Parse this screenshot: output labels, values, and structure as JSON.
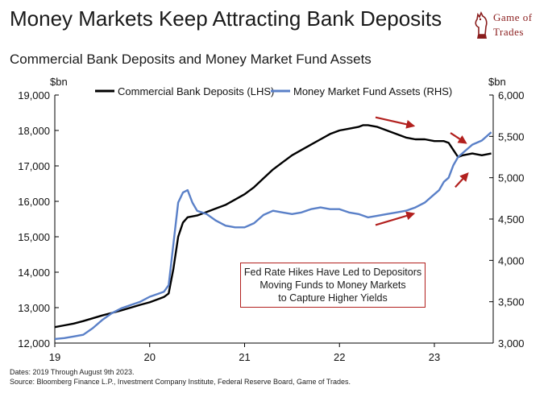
{
  "title": "Money Markets Keep Attracting Bank Deposits",
  "subtitle": "Commercial Bank Deposits and Money Market Fund Assets",
  "logo": {
    "line1": "Game of",
    "line2": "Trades",
    "icon": "chess-knight-icon"
  },
  "footer": {
    "line1": "Dates: 2019 Through August 9th 2023.",
    "line2": "Source: Bloomberg Finance L.P., Investment Company Institute, Federal Reserve Board, Game of Trades."
  },
  "annotation": {
    "lines": [
      "Fed Rate Hikes Have Led to Depositors",
      "Moving Funds to Money Markets",
      "to Capture Higher Yields"
    ],
    "color": "#b2201e"
  },
  "chart_data": {
    "type": "line",
    "left_unit": "$bn",
    "right_unit": "$bn",
    "x_ticks": [
      "19",
      "20",
      "21",
      "22",
      "23"
    ],
    "xlim": [
      2019.0,
      2023.62
    ],
    "left_ticks": [
      "12,000",
      "13,000",
      "14,000",
      "15,000",
      "16,000",
      "17,000",
      "18,000",
      "19,000"
    ],
    "right_ticks": [
      "3,000",
      "3,500",
      "4,000",
      "4,500",
      "5,000",
      "5,500",
      "6,000"
    ],
    "ylim_left": [
      12000,
      19000
    ],
    "ylim_right": [
      3000,
      6000
    ],
    "grid": false,
    "legend_position": "top",
    "series": [
      {
        "name": "Commercial Bank Deposits (LHS)",
        "axis": "left",
        "color": "#000000",
        "x": [
          2019.0,
          2019.1,
          2019.2,
          2019.3,
          2019.4,
          2019.5,
          2019.6,
          2019.7,
          2019.8,
          2019.9,
          2020.0,
          2020.1,
          2020.15,
          2020.2,
          2020.25,
          2020.3,
          2020.35,
          2020.4,
          2020.5,
          2020.6,
          2020.7,
          2020.8,
          2020.9,
          2021.0,
          2021.1,
          2021.2,
          2021.3,
          2021.4,
          2021.5,
          2021.6,
          2021.7,
          2021.8,
          2021.9,
          2022.0,
          2022.1,
          2022.2,
          2022.25,
          2022.3,
          2022.4,
          2022.5,
          2022.6,
          2022.7,
          2022.8,
          2022.9,
          2023.0,
          2023.1,
          2023.15,
          2023.2,
          2023.25,
          2023.3,
          2023.4,
          2023.5,
          2023.6
        ],
        "values": [
          12450,
          12500,
          12550,
          12620,
          12700,
          12780,
          12850,
          12920,
          13000,
          13080,
          13150,
          13250,
          13300,
          13400,
          14100,
          15000,
          15400,
          15550,
          15600,
          15700,
          15800,
          15900,
          16050,
          16200,
          16400,
          16650,
          16900,
          17100,
          17300,
          17450,
          17600,
          17750,
          17900,
          18000,
          18050,
          18100,
          18150,
          18150,
          18100,
          18000,
          17900,
          17800,
          17750,
          17750,
          17700,
          17700,
          17650,
          17450,
          17250,
          17300,
          17350,
          17300,
          17350
        ]
      },
      {
        "name": "Money Market Fund Assets (RHS)",
        "axis": "right",
        "color": "#5a80c8",
        "x": [
          2019.0,
          2019.1,
          2019.2,
          2019.3,
          2019.4,
          2019.5,
          2019.6,
          2019.7,
          2019.8,
          2019.9,
          2020.0,
          2020.1,
          2020.15,
          2020.2,
          2020.25,
          2020.3,
          2020.35,
          2020.4,
          2020.45,
          2020.5,
          2020.6,
          2020.7,
          2020.8,
          2020.9,
          2021.0,
          2021.1,
          2021.2,
          2021.3,
          2021.4,
          2021.5,
          2021.6,
          2021.7,
          2021.8,
          2021.9,
          2022.0,
          2022.1,
          2022.2,
          2022.3,
          2022.4,
          2022.5,
          2022.6,
          2022.7,
          2022.8,
          2022.9,
          2023.0,
          2023.05,
          2023.1,
          2023.15,
          2023.2,
          2023.25,
          2023.3,
          2023.4,
          2023.5,
          2023.6
        ],
        "values": [
          3050,
          3060,
          3080,
          3100,
          3180,
          3280,
          3360,
          3420,
          3460,
          3500,
          3560,
          3600,
          3620,
          3700,
          4200,
          4700,
          4820,
          4850,
          4700,
          4600,
          4560,
          4480,
          4420,
          4400,
          4400,
          4450,
          4550,
          4600,
          4580,
          4560,
          4580,
          4620,
          4640,
          4620,
          4620,
          4580,
          4560,
          4520,
          4540,
          4560,
          4580,
          4600,
          4640,
          4700,
          4800,
          4850,
          4950,
          5000,
          5150,
          5250,
          5300,
          5400,
          5450,
          5550
        ]
      }
    ],
    "arrows": [
      {
        "x1": 2022.38,
        "y1_left": 18370,
        "x2": 2022.78,
        "y2_left": 18130
      },
      {
        "x1": 2023.17,
        "y1_left": 17930,
        "x2": 2023.33,
        "y2_left": 17650
      },
      {
        "x1": 2023.22,
        "y1_left": 16400,
        "x2": 2023.35,
        "y2_left": 16780
      },
      {
        "x1": 2022.38,
        "y1_left": 15330,
        "x2": 2022.78,
        "y2_left": 15650
      }
    ],
    "arrow_color": "#b2201e"
  }
}
